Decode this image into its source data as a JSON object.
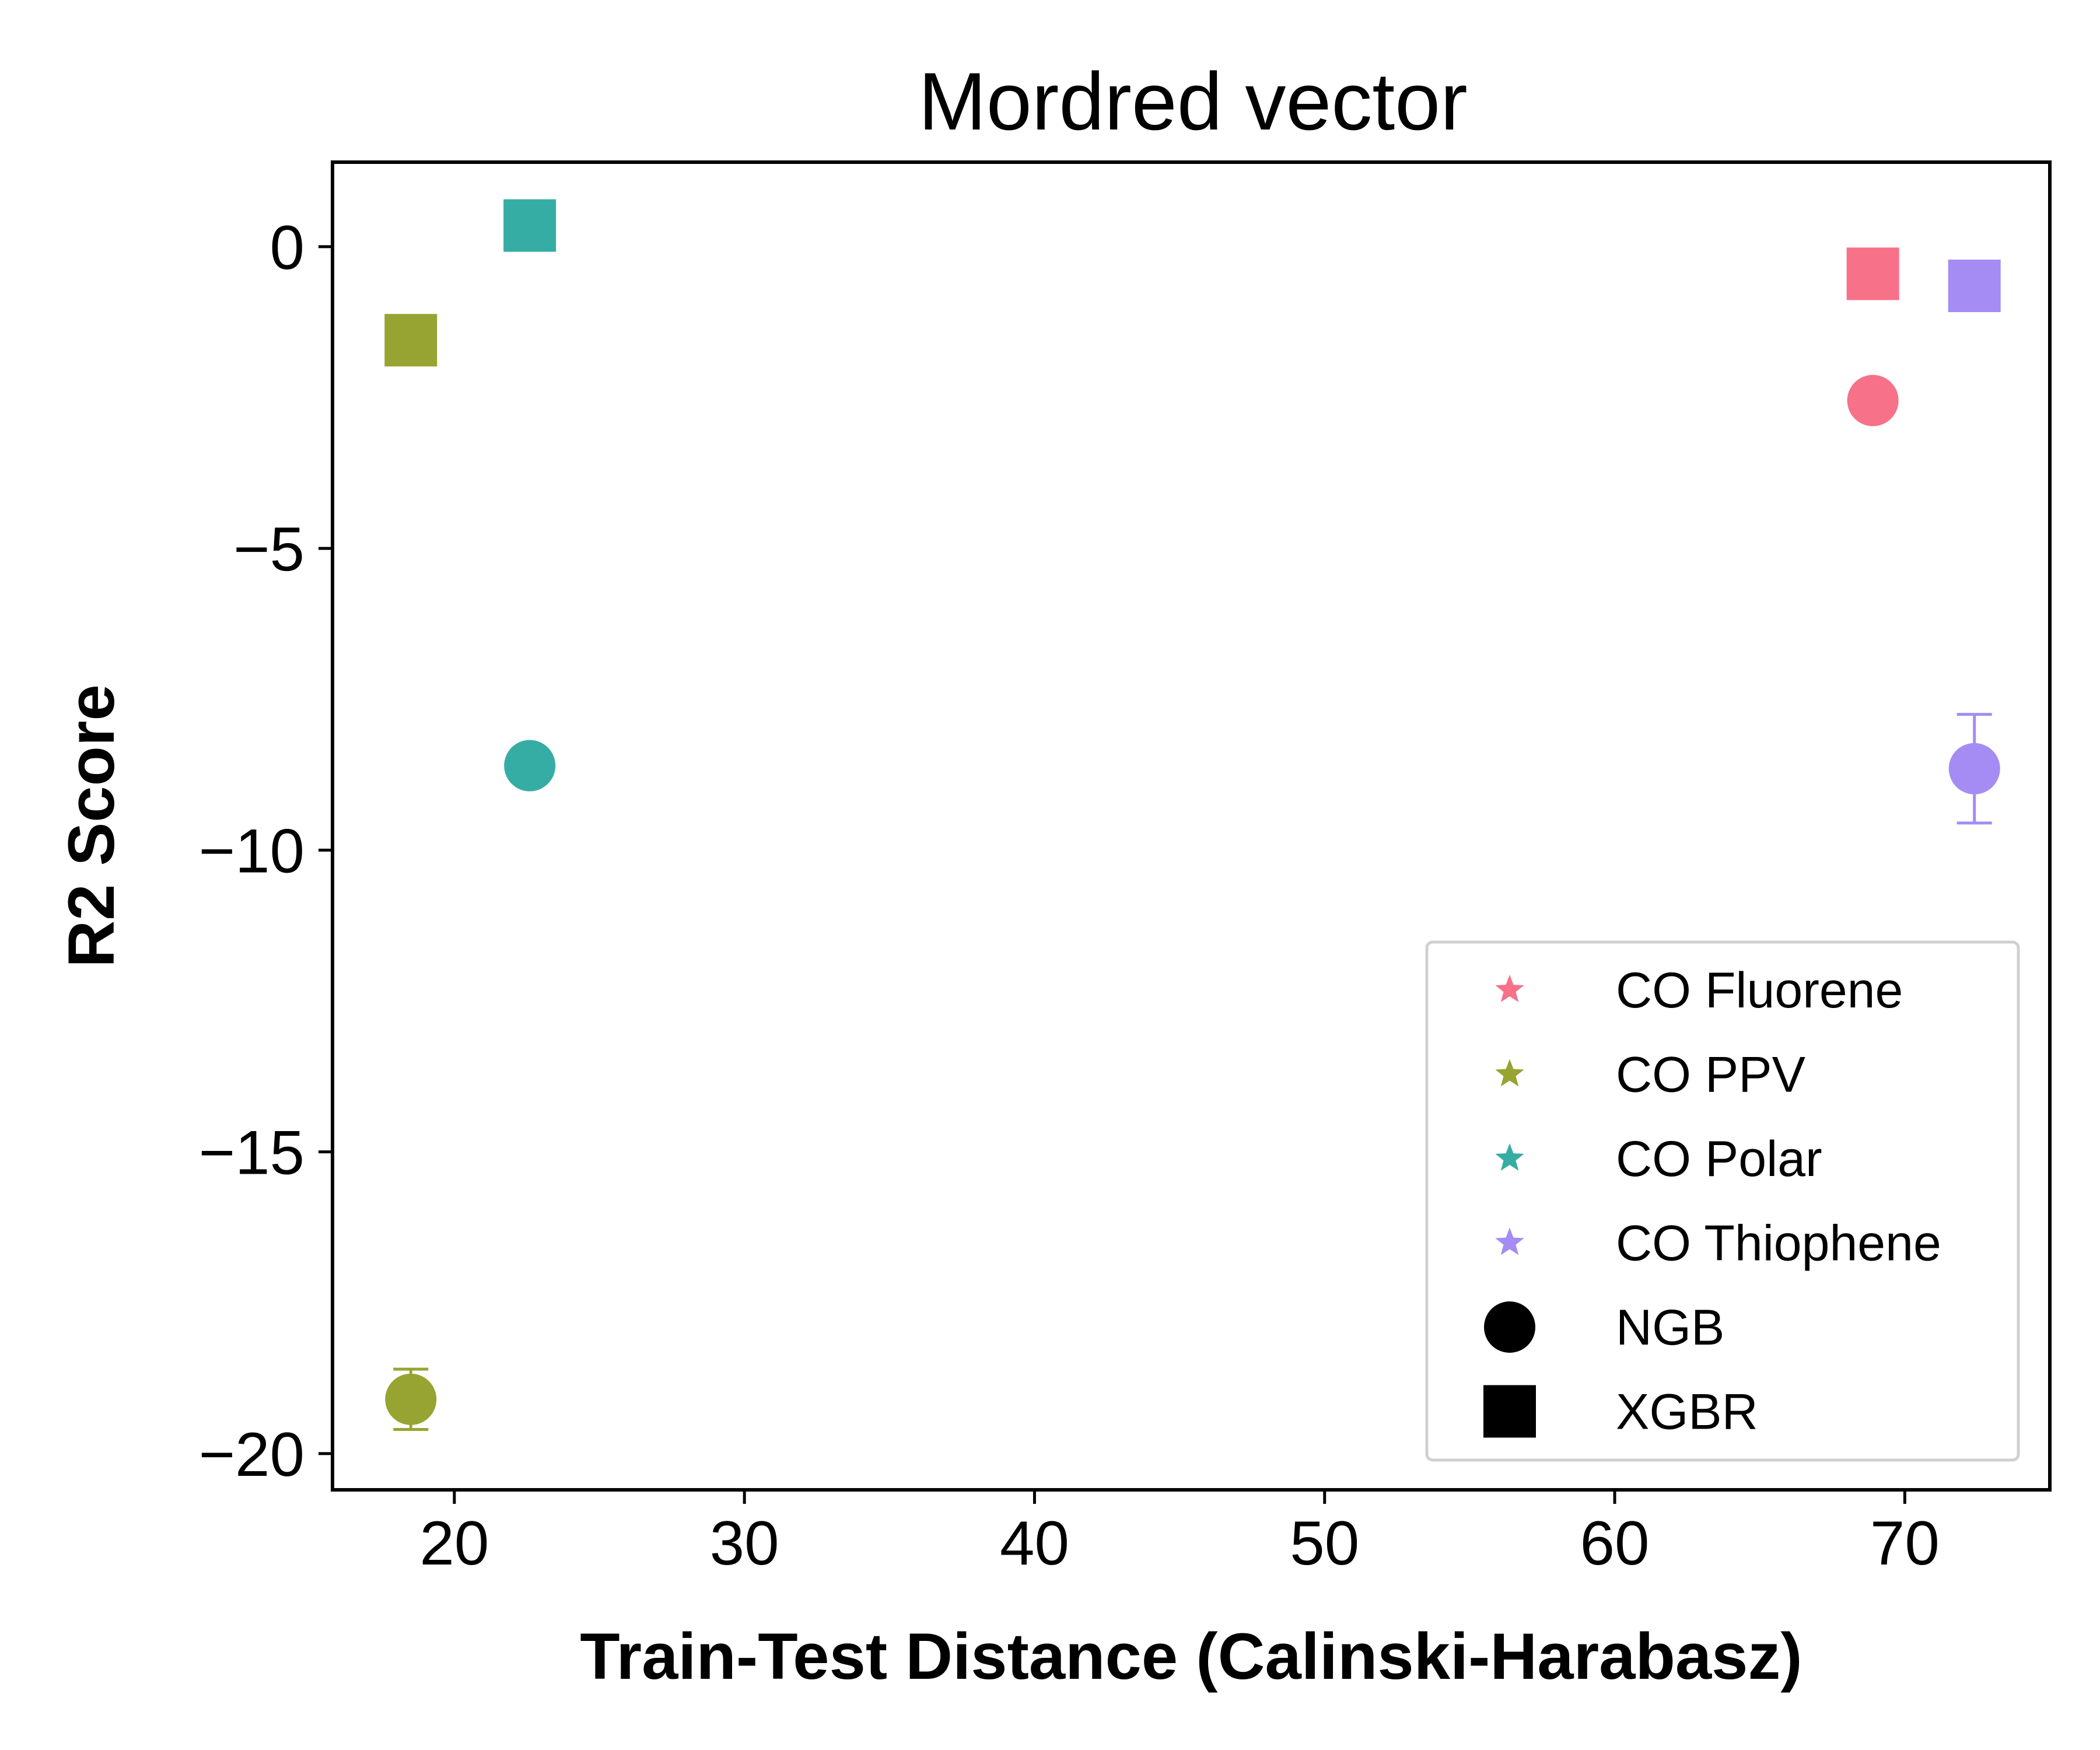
{
  "chart_data": {
    "type": "scatter",
    "title": "Mordred vector",
    "xlabel": "Train-Test Distance (Calinski-Harabasz)",
    "ylabel": "R2 Score",
    "xlim": [
      15.8,
      75.0
    ],
    "ylim": [
      -20.6,
      1.4
    ],
    "xticks": [
      20,
      30,
      40,
      50,
      60,
      70
    ],
    "yticks": [
      0,
      -5,
      -10,
      -15,
      -20
    ],
    "ytick_labels": [
      "0",
      "−5",
      "−10",
      "−15",
      "−20"
    ],
    "grid": false,
    "legend_position": "lower-right",
    "series": [
      {
        "name": "CO Fluorene",
        "color": "#f77189",
        "points": [
          {
            "model": "NGB",
            "x": 68.9,
            "y": -2.55,
            "err": 0
          },
          {
            "model": "XGBR",
            "x": 68.9,
            "y": -0.45,
            "err": 0
          }
        ]
      },
      {
        "name": "CO PPV",
        "color": "#97a431",
        "points": [
          {
            "model": "NGB",
            "x": 18.5,
            "y": -19.1,
            "err": 0.5
          },
          {
            "model": "XGBR",
            "x": 18.5,
            "y": -1.55,
            "err": 0
          }
        ]
      },
      {
        "name": "CO Polar",
        "color": "#36ada4",
        "points": [
          {
            "model": "NGB",
            "x": 22.6,
            "y": -8.6,
            "err": 0
          },
          {
            "model": "XGBR",
            "x": 22.6,
            "y": 0.35,
            "err": 0
          }
        ]
      },
      {
        "name": "CO Thiophene",
        "color": "#a48cf4",
        "points": [
          {
            "model": "NGB",
            "x": 72.4,
            "y": -8.65,
            "err": 0.9
          },
          {
            "model": "XGBR",
            "x": 72.4,
            "y": -0.65,
            "err": 0
          }
        ]
      }
    ],
    "legend": [
      {
        "label": "CO Fluorene",
        "marker": "star",
        "color": "#f77189"
      },
      {
        "label": "CO PPV",
        "marker": "star",
        "color": "#97a431"
      },
      {
        "label": "CO Polar",
        "marker": "star",
        "color": "#36ada4"
      },
      {
        "label": "CO Thiophene",
        "marker": "star",
        "color": "#a48cf4"
      },
      {
        "label": "NGB",
        "marker": "circle",
        "color": "#000000"
      },
      {
        "label": "XGBR",
        "marker": "square",
        "color": "#000000"
      }
    ]
  }
}
